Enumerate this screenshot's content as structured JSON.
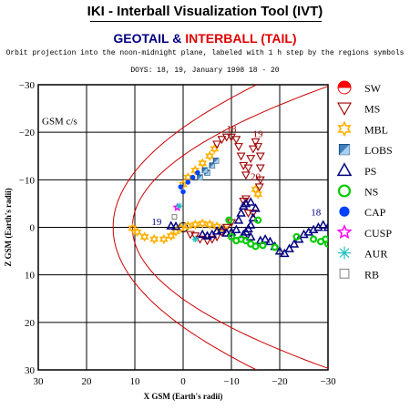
{
  "header": {
    "title": "IKI - Interball Visualization Tool (IVT)",
    "subtitle_geotail": "GEOTAIL",
    "subtitle_amp": " & ",
    "subtitle_interball": "INTERBALL (TAIL)",
    "description": "Orbit projection into the noon-midnight plane, labeled with 1 h step by the regions symbols",
    "doys": "DOYS: 18, 19,   January 1998 18 - 20"
  },
  "colors": {
    "magnetopause": "#cc0000",
    "SW": "#ff0000",
    "MS": "#a00000",
    "MBL": "#ffb000",
    "LOBS": "#4080c0",
    "PS": "#000080",
    "NS": "#00cc00",
    "CAP": "#0040ff",
    "CUSP": "#ff00ff",
    "AUR": "#20c0c0",
    "RB": "#808080"
  },
  "chart_data": {
    "type": "scatter",
    "title": "",
    "xlabel": "X GSM (Earth's radii)",
    "ylabel": "Z GSM (Earth's radii)",
    "frame_label": "GSM c/s",
    "xlim": [
      30,
      -30
    ],
    "ylim": [
      30,
      -30
    ],
    "xticks": [
      30,
      20,
      10,
      0,
      -10,
      -20,
      -30
    ],
    "yticks": [
      -30,
      -20,
      -10,
      0,
      10,
      20,
      30
    ],
    "grid": true,
    "legend_position": "right",
    "legend": [
      "SW",
      "MS",
      "MBL",
      "LOBS",
      "PS",
      "NS",
      "CAP",
      "CUSP",
      "AUR",
      "RB"
    ],
    "hour_labels": [
      {
        "text": "18",
        "x": -10,
        "y": -20,
        "color": "#a00000"
      },
      {
        "text": "19",
        "x": -15.5,
        "y": -19,
        "color": "#a00000"
      },
      {
        "text": "20",
        "x": -15,
        "y": -10,
        "color": "#a00000"
      },
      {
        "text": "18",
        "x": -27.5,
        "y": -2.5,
        "color": "#000080"
      },
      {
        "text": "19",
        "x": 5.5,
        "y": -0.5,
        "color": "#000080"
      }
    ],
    "series": [
      {
        "name": "MBL",
        "points": [
          [
            10.5,
            0.2
          ],
          [
            9.5,
            1.0
          ],
          [
            8,
            2.0
          ],
          [
            6,
            2.5
          ],
          [
            4,
            2.5
          ],
          [
            2.5,
            1.8
          ],
          [
            1.5,
            0.9
          ],
          [
            0.5,
            0.2
          ],
          [
            -1,
            -0.3
          ],
          [
            -2.5,
            -0.6
          ],
          [
            -4,
            -0.8
          ],
          [
            -5.5,
            -0.6
          ],
          [
            -7,
            -0.2
          ],
          [
            -8.5,
            0.3
          ],
          [
            0,
            -9
          ],
          [
            -1,
            -10.5
          ],
          [
            -2.5,
            -12
          ],
          [
            -4,
            -13.5
          ],
          [
            -5.5,
            -15
          ],
          [
            -6.5,
            -16.5
          ],
          [
            -15,
            -8
          ],
          [
            -15.5,
            -7
          ]
        ]
      },
      {
        "name": "MS",
        "points": [
          [
            -7,
            -17.5
          ],
          [
            -8,
            -18.5
          ],
          [
            -9,
            -19
          ],
          [
            -10,
            -19
          ],
          [
            -11,
            -18.5
          ],
          [
            -11.5,
            -17
          ],
          [
            -12,
            -15
          ],
          [
            -12.5,
            -13
          ],
          [
            -13,
            -11
          ],
          [
            -13.5,
            -12.5
          ],
          [
            -14,
            -14.5
          ],
          [
            -14.5,
            -16.5
          ],
          [
            -15,
            -18
          ],
          [
            -15.5,
            -17
          ],
          [
            -16,
            -15
          ],
          [
            -16,
            -12.5
          ],
          [
            -16,
            -10
          ],
          [
            -15.8,
            -8.5
          ],
          [
            -13,
            -6
          ],
          [
            -12.5,
            -5.5
          ],
          [
            -10,
            -1
          ],
          [
            -9,
            0
          ],
          [
            -8,
            1
          ],
          [
            -7,
            2
          ],
          [
            -6,
            2.5
          ],
          [
            -5,
            2.8
          ],
          [
            -3.5,
            2.5
          ],
          [
            -2.5,
            1.8
          ],
          [
            -1.5,
            1.5
          ],
          [
            -13.5,
            -3
          ],
          [
            -14.5,
            -3
          ]
        ]
      },
      {
        "name": "PS",
        "points": [
          [
            2.5,
            -0.3
          ],
          [
            1.5,
            -0.2
          ],
          [
            -4,
            1.5
          ],
          [
            -5,
            1.8
          ],
          [
            -6,
            1.5
          ],
          [
            -7,
            0.8
          ],
          [
            -8,
            0.5
          ],
          [
            -9,
            1.2
          ],
          [
            -10,
            1.0
          ],
          [
            -11,
            0.5
          ],
          [
            -11.5,
            -1.5
          ],
          [
            -12,
            -3
          ],
          [
            -12.5,
            -4.5
          ],
          [
            -13,
            -5
          ],
          [
            -14,
            -5.3
          ],
          [
            -15,
            -4
          ],
          [
            -14.5,
            -2
          ],
          [
            -14,
            -0.5
          ],
          [
            -13.5,
            0.3
          ],
          [
            -13,
            1
          ],
          [
            -12.5,
            1.5
          ],
          [
            -14,
            2
          ],
          [
            -16,
            2.8
          ],
          [
            -17,
            2.5
          ],
          [
            -18,
            3
          ],
          [
            -19,
            4
          ],
          [
            -20,
            5
          ],
          [
            -21,
            5.5
          ],
          [
            -22,
            4.5
          ],
          [
            -23,
            3.5
          ],
          [
            -24,
            2.5
          ],
          [
            -25,
            1.5
          ],
          [
            -26,
            1
          ],
          [
            -27,
            0.5
          ],
          [
            -28,
            0
          ],
          [
            -29,
            -0.5
          ],
          [
            -30,
            0
          ]
        ]
      },
      {
        "name": "LOBS",
        "points": [
          [
            -5,
            -11.5
          ],
          [
            -6,
            -13
          ],
          [
            -6.8,
            -14
          ],
          [
            -4.5,
            -12
          ],
          [
            -3.5,
            -10.5
          ]
        ]
      },
      {
        "name": "NS",
        "points": [
          [
            -9.5,
            -1.5
          ],
          [
            -15.5,
            -1.5
          ],
          [
            -10,
            2
          ],
          [
            -11,
            2.8
          ],
          [
            -12,
            2.5
          ],
          [
            -13,
            2.8
          ],
          [
            -14,
            3.5
          ],
          [
            -15,
            4
          ],
          [
            -16.5,
            3.8
          ],
          [
            -19,
            4.2
          ],
          [
            -23.5,
            2
          ],
          [
            -27,
            2.5
          ],
          [
            -28.5,
            3
          ],
          [
            -29.5,
            2.5
          ],
          [
            -30,
            3.5
          ]
        ]
      },
      {
        "name": "CAP",
        "points": [
          [
            0,
            -7.5
          ],
          [
            0.5,
            -8.5
          ],
          [
            -1,
            -9.5
          ],
          [
            -2,
            -10.5
          ],
          [
            -3,
            -11.5
          ]
        ]
      },
      {
        "name": "CUSP",
        "points": [
          [
            1.2,
            -4.2
          ]
        ]
      },
      {
        "name": "AUR",
        "points": [
          [
            0.8,
            -4.5
          ],
          [
            -2.5,
            2.5
          ]
        ]
      },
      {
        "name": "RB",
        "points": [
          [
            1.8,
            -2.2
          ]
        ]
      }
    ]
  }
}
